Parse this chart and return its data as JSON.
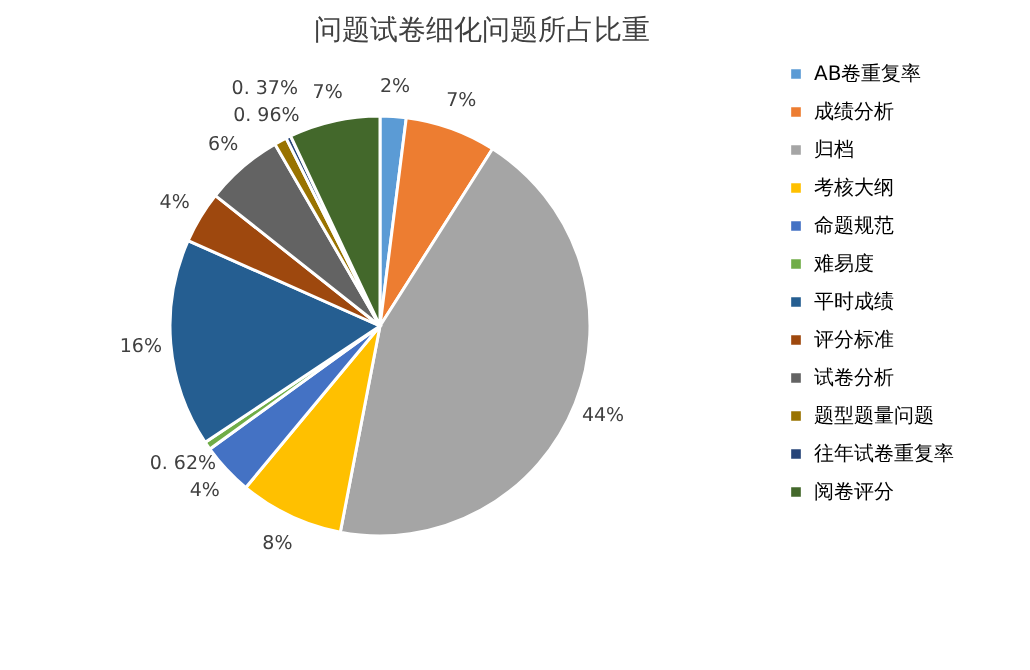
{
  "chart_data": {
    "type": "pie",
    "title": "问题试卷细化问题所占比重",
    "categories": [
      "AB卷重复率",
      "成绩分析",
      "归档",
      "考核大纲",
      "命题规范",
      "难易度",
      "平时成绩",
      "评分标准",
      "试卷分析",
      "题型题量问题",
      "往年试卷重复率",
      "阅卷评分"
    ],
    "values": [
      2,
      7,
      44,
      8,
      4,
      0.62,
      16,
      4,
      6,
      0.96,
      0.37,
      7
    ],
    "value_labels": [
      "2%",
      "7%",
      "44%",
      "8%",
      "4%",
      "0. 62%",
      "16%",
      "4%",
      "6%",
      "0. 96%",
      "0. 37%",
      "7%"
    ],
    "colors": [
      "#5b9bd5",
      "#ed7d31",
      "#a5a5a5",
      "#ffc000",
      "#4472c4",
      "#70ad47",
      "#255e91",
      "#9e480e",
      "#636363",
      "#997300",
      "#264478",
      "#43682b"
    ],
    "legend": "right"
  }
}
